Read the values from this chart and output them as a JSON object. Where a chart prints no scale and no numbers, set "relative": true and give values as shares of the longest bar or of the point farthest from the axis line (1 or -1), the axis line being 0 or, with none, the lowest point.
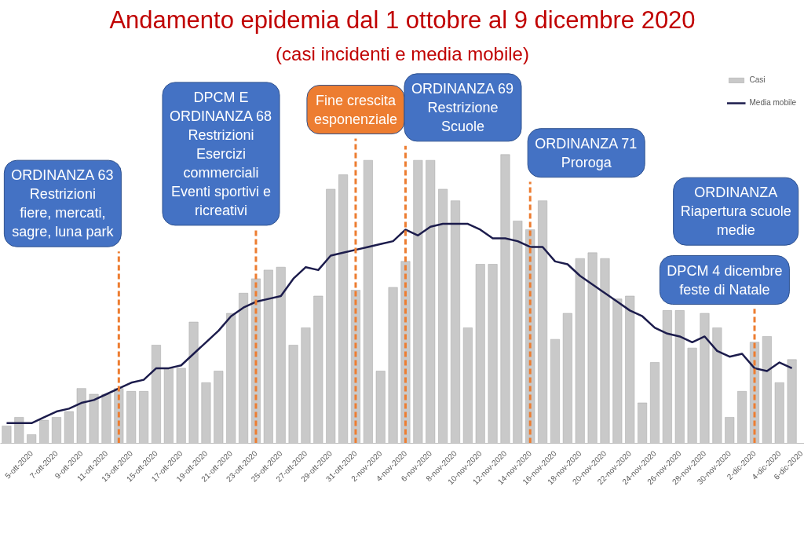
{
  "chart_data": {
    "type": "bar",
    "title": "Andamento epidemia dal 1 ottobre al 9 dicembre 2020",
    "subtitle": "(casi incidenti e media mobile)",
    "relative": true,
    "x": [
      "2020-10-03",
      "2020-10-04",
      "2020-10-05",
      "2020-10-06",
      "2020-10-07",
      "2020-10-08",
      "2020-10-09",
      "2020-10-10",
      "2020-10-11",
      "2020-10-12",
      "2020-10-13",
      "2020-10-14",
      "2020-10-15",
      "2020-10-16",
      "2020-10-17",
      "2020-10-18",
      "2020-10-19",
      "2020-10-20",
      "2020-10-21",
      "2020-10-22",
      "2020-10-23",
      "2020-10-24",
      "2020-10-25",
      "2020-10-26",
      "2020-10-27",
      "2020-10-28",
      "2020-10-29",
      "2020-10-30",
      "2020-10-31",
      "2020-11-01",
      "2020-11-02",
      "2020-11-03",
      "2020-11-04",
      "2020-11-05",
      "2020-11-06",
      "2020-11-07",
      "2020-11-08",
      "2020-11-09",
      "2020-11-10",
      "2020-11-11",
      "2020-11-12",
      "2020-11-13",
      "2020-11-14",
      "2020-11-15",
      "2020-11-16",
      "2020-11-17",
      "2020-11-18",
      "2020-11-19",
      "2020-11-20",
      "2020-11-21",
      "2020-11-22",
      "2020-11-23",
      "2020-11-24",
      "2020-11-25",
      "2020-11-26",
      "2020-11-27",
      "2020-11-28",
      "2020-11-29",
      "2020-11-30",
      "2020-12-01",
      "2020-12-02",
      "2020-12-03",
      "2020-12-04",
      "2020-12-05"
    ],
    "xlim": [
      "2020-10-02T12:00",
      "2020-12-06"
    ],
    "xticks": [
      {
        "value": "2020-10-05",
        "label": "5-ott-2020"
      },
      {
        "value": "2020-10-07",
        "label": "7-ott-2020"
      },
      {
        "value": "2020-10-09",
        "label": "9-ott-2020"
      },
      {
        "value": "2020-10-11",
        "label": "11-ott-2020"
      },
      {
        "value": "2020-10-13",
        "label": "13-ott-2020"
      },
      {
        "value": "2020-10-15",
        "label": "15-ott-2020"
      },
      {
        "value": "2020-10-17",
        "label": "17-ott-2020"
      },
      {
        "value": "2020-10-19",
        "label": "19-ott-2020"
      },
      {
        "value": "2020-10-21",
        "label": "21-ott-2020"
      },
      {
        "value": "2020-10-23",
        "label": "23-ott-2020"
      },
      {
        "value": "2020-10-25",
        "label": "25-ott-2020"
      },
      {
        "value": "2020-10-27",
        "label": "27-ott-2020"
      },
      {
        "value": "2020-10-29",
        "label": "29-ott-2020"
      },
      {
        "value": "2020-10-31",
        "label": "31-ott-2020"
      },
      {
        "value": "2020-11-02",
        "label": "2-nov-2020"
      },
      {
        "value": "2020-11-04",
        "label": "4-nov-2020"
      },
      {
        "value": "2020-11-06",
        "label": "6-nov-2020"
      },
      {
        "value": "2020-11-08",
        "label": "8-nov-2020"
      },
      {
        "value": "2020-11-10",
        "label": "10-nov-2020"
      },
      {
        "value": "2020-11-12",
        "label": "12-nov-2020"
      },
      {
        "value": "2020-11-14",
        "label": "14-nov-2020"
      },
      {
        "value": "2020-11-16",
        "label": "16-nov-2020"
      },
      {
        "value": "2020-11-18",
        "label": "18-nov-2020"
      },
      {
        "value": "2020-11-20",
        "label": "20-nov-2020"
      },
      {
        "value": "2020-11-22",
        "label": "22-nov-2020"
      },
      {
        "value": "2020-11-24",
        "label": "24-nov-2020"
      },
      {
        "value": "2020-11-26",
        "label": "26-nov-2020"
      },
      {
        "value": "2020-11-28",
        "label": "28-nov-2020"
      },
      {
        "value": "2020-11-30",
        "label": "30-nov-2020"
      },
      {
        "value": "2020-12-02",
        "label": "2-dic-2020"
      },
      {
        "value": "2020-12-04",
        "label": "4-dic-2020"
      },
      {
        "value": "2020-12-06",
        "label": "6-dic-2020"
      }
    ],
    "series": [
      {
        "name": "Casi",
        "color": "#c9c9c9",
        "values": [
          0.06,
          0.09,
          0.03,
          0.08,
          0.09,
          0.11,
          0.19,
          0.17,
          0.17,
          0.19,
          0.18,
          0.18,
          0.34,
          0.26,
          0.26,
          0.42,
          0.21,
          0.25,
          0.45,
          0.52,
          0.57,
          0.6,
          0.61,
          0.34,
          0.4,
          0.51,
          0.88,
          0.93,
          0.53,
          0.98,
          0.25,
          0.54,
          0.63,
          0.98,
          0.98,
          0.88,
          0.84,
          0.4,
          0.62,
          0.62,
          1,
          0.77,
          0.74,
          0.84,
          0.36,
          0.45,
          0.64,
          0.66,
          0.64,
          0.5,
          0.51,
          0.14,
          0.28,
          0.46,
          0.46,
          0.33,
          0.45,
          0.4,
          0.09,
          0.18,
          0.35,
          0.37,
          0.21,
          0.29
        ]
      },
      {
        "name": "Media mobile",
        "type": "line",
        "color": "#1c1c4c",
        "values": [
          0.07,
          0.07,
          0.07,
          0.09,
          0.11,
          0.12,
          0.14,
          0.15,
          0.17,
          0.19,
          0.21,
          0.22,
          0.26,
          0.26,
          0.27,
          0.31,
          0.35,
          0.39,
          0.44,
          0.47,
          0.49,
          0.5,
          0.51,
          0.57,
          0.61,
          0.6,
          0.65,
          0.66,
          0.67,
          0.68,
          0.69,
          0.7,
          0.74,
          0.72,
          0.75,
          0.76,
          0.76,
          0.76,
          0.74,
          0.71,
          0.71,
          0.7,
          0.68,
          0.68,
          0.63,
          0.62,
          0.58,
          0.55,
          0.52,
          0.49,
          0.46,
          0.44,
          0.4,
          0.38,
          0.37,
          0.35,
          0.37,
          0.32,
          0.3,
          0.31,
          0.26,
          0.25,
          0.28,
          0.26
        ]
      }
    ],
    "ref_lines": [
      {
        "axis": "x",
        "value": "2020-10-12",
        "label": "ORDINANZA 63\nRestrizioni\nfiere, mercati,\nsagre, luna park",
        "color": "#ed7d31",
        "line_style": "dashed"
      },
      {
        "axis": "x",
        "value": "2020-10-23",
        "label": "DPCM E\nORDINANZA 68\nRestrizioni\nEsercizi\ncommerciali\nEventi sportivi e\nricreativi",
        "color": "#ed7d31",
        "line_style": "dashed"
      },
      {
        "axis": "x",
        "value": "2020-10-31",
        "label": "Fine crescita\nesponenziale",
        "color": "#ed7d31",
        "line_style": "dashed"
      },
      {
        "axis": "x",
        "value": "2020-11-04",
        "label": "ORDINANZA 69\nRestrizione\nScuole",
        "color": "#ed7d31",
        "line_style": "dashed"
      },
      {
        "axis": "x",
        "value": "2020-11-14",
        "label": "ORDINANZA 71\nProroga",
        "color": "#ed7d31",
        "line_style": "dashed"
      },
      {
        "axis": "x",
        "value": "2020-12-02",
        "label": "DPCM 4 dicembre\nfeste di Natale",
        "color": "#ed7d31",
        "line_style": "dashed"
      }
    ],
    "annotations": [
      "ORDINANZA\nRiapertura scuole\nmedie"
    ],
    "legend": "top right",
    "grid": false
  }
}
